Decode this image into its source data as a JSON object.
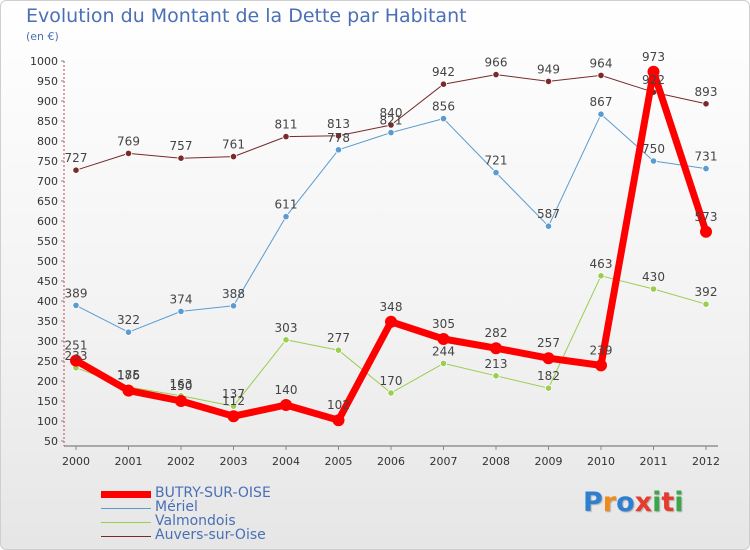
{
  "title": "Evolution du Montant de la Dette par Habitant",
  "subtitle": "(en €)",
  "logo": {
    "text": "Proxiti",
    "letters": [
      "P",
      "r",
      "o",
      "x",
      "i",
      "t",
      "i"
    ],
    "colors": [
      "#2e7fd0",
      "#f08a1c",
      "#2e7fd0",
      "#e63c2e",
      "#3aa64a",
      "#e63c2e",
      "#3aa64a"
    ]
  },
  "chart_data": {
    "type": "line",
    "title": "Evolution du Montant de la Dette par Habitant",
    "ylabel": "(en €)",
    "x": [
      "2000",
      "2001",
      "2002",
      "2003",
      "2004",
      "2005",
      "2006",
      "2007",
      "2008",
      "2009",
      "2010",
      "2011",
      "2012"
    ],
    "ylim": [
      50,
      1000
    ],
    "yticks": [
      50,
      100,
      150,
      200,
      250,
      300,
      350,
      400,
      450,
      500,
      550,
      600,
      650,
      700,
      750,
      800,
      850,
      900,
      950,
      1000
    ],
    "grid": false,
    "legend_position": "bottom-left",
    "series": [
      {
        "name": "Auvers-sur-Oise",
        "color": "#7a2a2a",
        "width": 1,
        "values": [
          727,
          769,
          757,
          761,
          811,
          813,
          840,
          942,
          966,
          949,
          964,
          922,
          893
        ],
        "labels": [
          "727",
          "769",
          "757",
          "761",
          "811",
          "813",
          "840",
          "942",
          "966",
          "949",
          "964",
          "922",
          "893"
        ]
      },
      {
        "name": "Mériel",
        "color": "#5b9bd0",
        "width": 1,
        "values": [
          389,
          322,
          374,
          388,
          611,
          778,
          821,
          856,
          721,
          587,
          867,
          750,
          731
        ],
        "labels": [
          "389",
          "322",
          "374",
          "388",
          "611",
          "778",
          "821",
          "856",
          "721",
          "587",
          "867",
          "750",
          "731"
        ]
      },
      {
        "name": "Valmondois",
        "color": "#9acd50",
        "width": 1,
        "values": [
          233,
          185,
          163,
          137,
          303,
          277,
          170,
          244,
          213,
          182,
          463,
          430,
          392
        ],
        "labels": [
          "233",
          "185",
          "163",
          "137",
          "303",
          "277",
          "170",
          "244",
          "213",
          "182",
          "463",
          "430",
          "392"
        ]
      },
      {
        "name": "BUTRY-SUR-OISE",
        "color": "#ff0000",
        "width": 7,
        "values": [
          251,
          176,
          150,
          112,
          140,
          102,
          348,
          305,
          282,
          257,
          239,
          973,
          573
        ],
        "labels": [
          "251",
          "176",
          "150",
          "112",
          "140",
          "102",
          "348",
          "305",
          "282",
          "257",
          "239",
          "973",
          "573"
        ]
      }
    ]
  },
  "legend": [
    {
      "name": "BUTRY-SUR-OISE",
      "color": "#ff0000",
      "thickness": 7
    },
    {
      "name": "Mériel",
      "color": "#5b9bd0",
      "thickness": 1
    },
    {
      "name": "Valmondois",
      "color": "#9acd50",
      "thickness": 1
    },
    {
      "name": "Auvers-sur-Oise",
      "color": "#7a2a2a",
      "thickness": 1
    }
  ]
}
